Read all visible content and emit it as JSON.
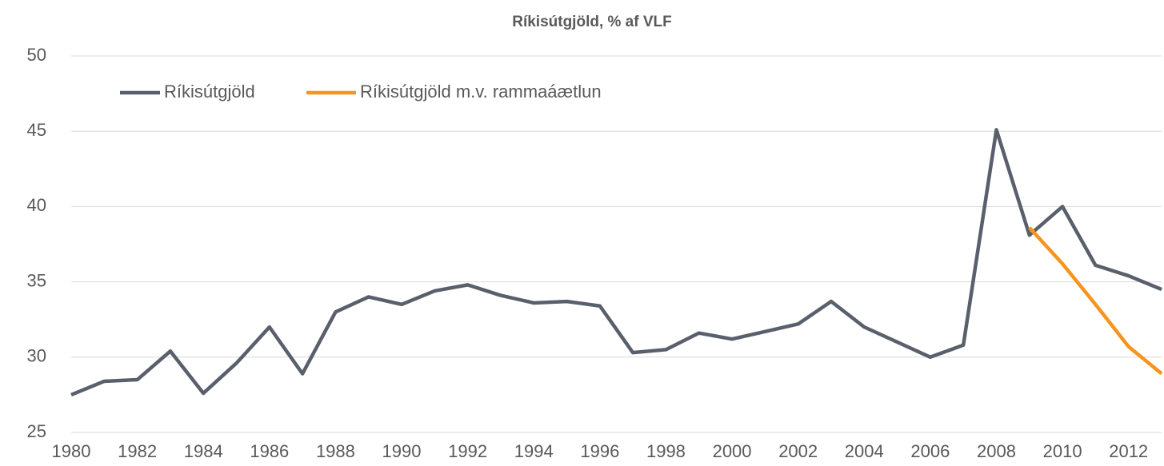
{
  "chart_data": {
    "type": "line",
    "title": "Ríkisútgjöld, % af VLF",
    "x": [
      1980,
      1981,
      1982,
      1983,
      1984,
      1985,
      1986,
      1987,
      1988,
      1989,
      1990,
      1991,
      1992,
      1993,
      1994,
      1995,
      1996,
      1997,
      1998,
      1999,
      2000,
      2001,
      2002,
      2003,
      2004,
      2005,
      2006,
      2007,
      2008,
      2009,
      2010,
      2011,
      2012,
      2013
    ],
    "series": [
      {
        "name": "Ríkisútgjöld",
        "color": "#59606b",
        "values": [
          27.5,
          28.4,
          28.5,
          30.4,
          27.6,
          29.6,
          32.0,
          28.9,
          33.0,
          34.0,
          33.5,
          34.4,
          34.8,
          34.1,
          33.6,
          33.7,
          33.4,
          30.3,
          30.5,
          31.6,
          31.2,
          31.7,
          32.2,
          33.7,
          32.0,
          31.0,
          30.0,
          30.8,
          45.1,
          38.1,
          40.0,
          36.1,
          35.4,
          34.5
        ]
      },
      {
        "name": "Ríkisútgjöld m.v. rammaáætlun",
        "color": "#f7941d",
        "values": [
          null,
          null,
          null,
          null,
          null,
          null,
          null,
          null,
          null,
          null,
          null,
          null,
          null,
          null,
          null,
          null,
          null,
          null,
          null,
          null,
          null,
          null,
          null,
          null,
          null,
          null,
          null,
          null,
          null,
          38.6,
          36.2,
          33.5,
          30.7,
          28.9
        ]
      }
    ],
    "xlim": [
      1980,
      2013
    ],
    "xticks": [
      1980,
      1982,
      1984,
      1986,
      1988,
      1990,
      1992,
      1994,
      1996,
      1998,
      2000,
      2002,
      2004,
      2006,
      2008,
      2010,
      2012
    ],
    "ylim": [
      25,
      50
    ],
    "yticks": [
      25,
      30,
      35,
      40,
      45,
      50
    ],
    "grid": true,
    "legend": "top-left"
  }
}
